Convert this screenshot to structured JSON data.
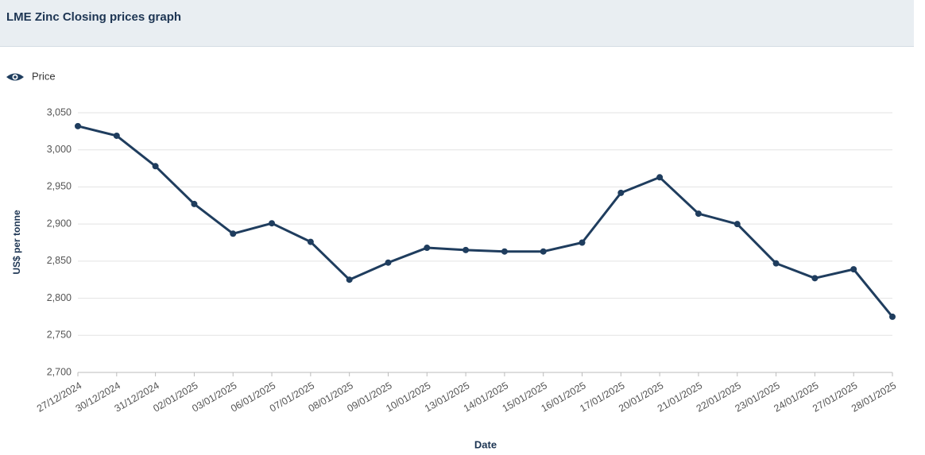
{
  "chart_data": {
    "type": "line",
    "title": "LME Zinc Closing prices graph",
    "x_label": "Date",
    "y_label": "US$ per tonne",
    "categories": [
      "27/12/2024",
      "30/12/2024",
      "31/12/2024",
      "02/01/2025",
      "03/01/2025",
      "06/01/2025",
      "07/01/2025",
      "08/01/2025",
      "09/01/2025",
      "10/01/2025",
      "13/01/2025",
      "14/01/2025",
      "15/01/2025",
      "16/01/2025",
      "17/01/2025",
      "20/01/2025",
      "21/01/2025",
      "22/01/2025",
      "23/01/2025",
      "24/01/2025",
      "27/01/2025",
      "28/01/2025"
    ],
    "series": [
      {
        "name": "Price",
        "color": "#1f3d5e",
        "values": [
          3032,
          3019,
          2978,
          2927,
          2887,
          2901,
          2876,
          2825,
          2848,
          2868,
          2865,
          2863,
          2863,
          2875,
          2942,
          2963,
          2914,
          2900,
          2847,
          2827,
          2839,
          2775
        ]
      }
    ],
    "ylim": [
      2700,
      3050
    ],
    "yticks": [
      {
        "value": 2700,
        "label": "2,700"
      },
      {
        "value": 2750,
        "label": "2,750"
      },
      {
        "value": 2800,
        "label": "2,800"
      },
      {
        "value": 2850,
        "label": "2,850"
      },
      {
        "value": 2900,
        "label": "2,900"
      },
      {
        "value": 2950,
        "label": "2,950"
      },
      {
        "value": 3000,
        "label": "3,000"
      },
      {
        "value": 3050,
        "label": "3,050"
      }
    ],
    "grid": true,
    "legend": "top-left"
  }
}
